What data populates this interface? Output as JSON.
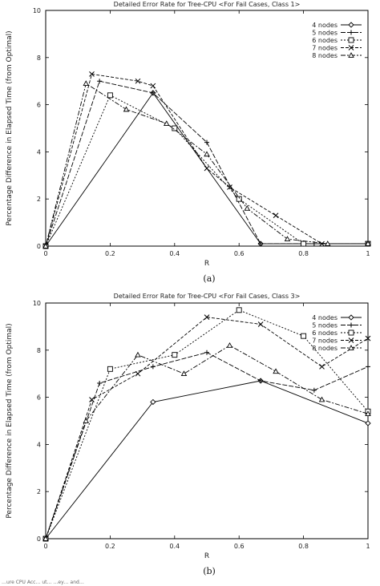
{
  "footer_text": "…ure  CPU Acc…  ut…  …ey…  and…",
  "chart_data": [
    {
      "type": "line",
      "caption": "(a)",
      "title": "Detailed Error Rate for Tree-CPU <For Fail Cases, Class 1>",
      "xlabel": "R",
      "ylabel": "Percentage Difference in Elapsed Time (from Optimal)",
      "xlim": [
        0,
        1
      ],
      "ylim": [
        0,
        10
      ],
      "xticks": [
        "0",
        "0.2",
        "0.4",
        "0.6",
        "0.8",
        "1"
      ],
      "yticks": [
        "0",
        "2",
        "4",
        "6",
        "8",
        "10"
      ],
      "grid": false,
      "legend_position": "top-right",
      "series": [
        {
          "name": "4 nodes",
          "marker": "diamond",
          "dash": "",
          "x": [
            0,
            0.333,
            0.667,
            0.8,
            1
          ],
          "y": [
            0,
            6.5,
            0.1,
            0.1,
            0.1
          ]
        },
        {
          "name": "5 nodes",
          "marker": "plus",
          "dash": "6,2",
          "x": [
            0,
            0.167,
            0.333,
            0.5,
            0.667,
            0.833,
            1
          ],
          "y": [
            0,
            7.0,
            6.5,
            4.4,
            0.1,
            0.1,
            0.1
          ]
        },
        {
          "name": "6 nodes",
          "marker": "square",
          "dash": "2,2",
          "x": [
            0,
            0.2,
            0.4,
            0.6,
            0.8,
            1
          ],
          "y": [
            0,
            6.4,
            5.0,
            2.0,
            0.1,
            0.1
          ]
        },
        {
          "name": "7 nodes",
          "marker": "x",
          "dash": "4,2",
          "x": [
            0,
            0.143,
            0.286,
            0.333,
            0.5,
            0.571,
            0.714,
            0.857,
            1
          ],
          "y": [
            0,
            7.3,
            7.0,
            6.8,
            3.3,
            2.5,
            1.3,
            0.1,
            0.1
          ]
        },
        {
          "name": "8 nodes",
          "marker": "triangle",
          "dash": "6,2,2,2",
          "x": [
            0,
            0.125,
            0.25,
            0.375,
            0.5,
            0.625,
            0.75,
            0.875,
            1
          ],
          "y": [
            0,
            6.9,
            5.8,
            5.2,
            3.9,
            1.6,
            0.3,
            0.1,
            0.1
          ]
        }
      ]
    },
    {
      "type": "line",
      "caption": "(b)",
      "title": "Detailed Error Rate for Tree-CPU <For Fail Cases, Class 3>",
      "xlabel": "R",
      "ylabel": "Percentage Difference in Elapsed Time (from Optimal)",
      "xlim": [
        0,
        1
      ],
      "ylim": [
        0,
        10
      ],
      "xticks": [
        "0",
        "0.2",
        "0.4",
        "0.6",
        "0.8",
        "1"
      ],
      "yticks": [
        "0",
        "2",
        "4",
        "6",
        "8",
        "10"
      ],
      "grid": false,
      "legend_position": "top-right",
      "series": [
        {
          "name": "4 nodes",
          "marker": "diamond",
          "dash": "",
          "x": [
            0,
            0.333,
            0.667,
            1
          ],
          "y": [
            0,
            5.8,
            6.7,
            4.9
          ]
        },
        {
          "name": "5 nodes",
          "marker": "plus",
          "dash": "6,2",
          "x": [
            0,
            0.167,
            0.333,
            0.5,
            0.667,
            0.833,
            1
          ],
          "y": [
            0,
            6.6,
            7.3,
            7.9,
            6.7,
            6.3,
            7.3
          ]
        },
        {
          "name": "6 nodes",
          "marker": "square",
          "dash": "2,2",
          "x": [
            0,
            0.2,
            0.4,
            0.6,
            0.8,
            1
          ],
          "y": [
            0,
            7.2,
            7.8,
            9.7,
            8.6,
            5.4
          ]
        },
        {
          "name": "7 nodes",
          "marker": "x",
          "dash": "4,2",
          "x": [
            0,
            0.143,
            0.286,
            0.5,
            0.667,
            0.857,
            1
          ],
          "y": [
            0,
            5.9,
            7.0,
            9.4,
            9.1,
            7.3,
            8.5
          ]
        },
        {
          "name": "8 nodes",
          "marker": "triangle",
          "dash": "6,2,2,2",
          "x": [
            0,
            0.125,
            0.286,
            0.429,
            0.571,
            0.714,
            0.857,
            1
          ],
          "y": [
            0,
            5.0,
            7.8,
            7.0,
            8.2,
            7.1,
            5.9,
            5.3
          ]
        }
      ]
    }
  ]
}
